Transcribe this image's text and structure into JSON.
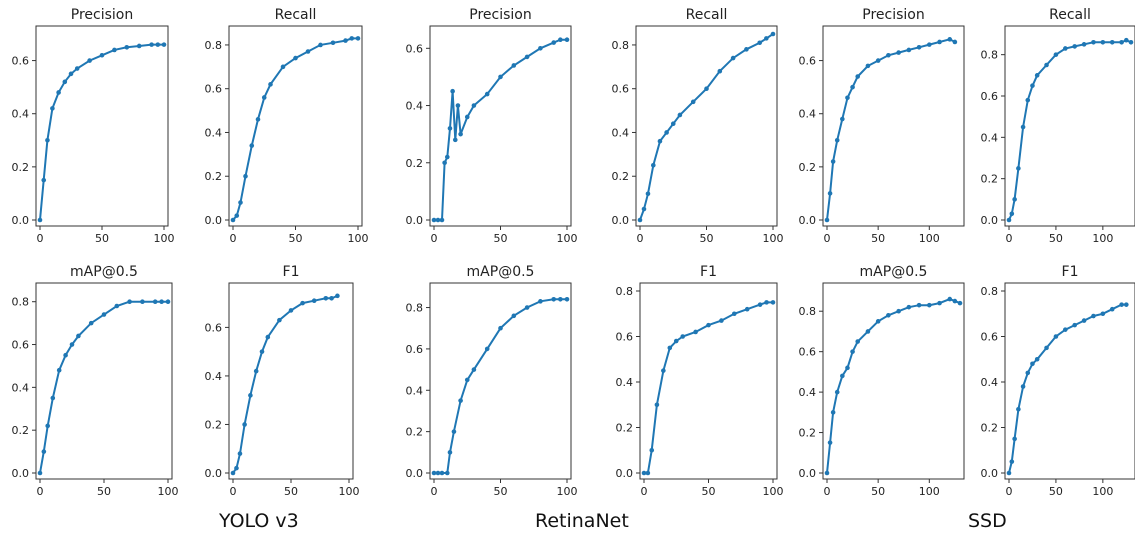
{
  "groups": [
    {
      "label": "YOLO v3"
    },
    {
      "label": "RetinaNet"
    },
    {
      "label": "SSD"
    }
  ],
  "chart_data": [
    {
      "type": "line",
      "model": "YOLO v3",
      "title": "Precision",
      "xlim": [
        0,
        100
      ],
      "ylim": [
        0,
        0.7
      ],
      "xticks": [
        0,
        50,
        100
      ],
      "yticks": [
        0.0,
        0.2,
        0.4,
        0.6
      ],
      "color": "#1f77b4",
      "x": [
        0,
        3,
        6,
        10,
        15,
        20,
        25,
        30,
        40,
        50,
        60,
        70,
        80,
        90,
        95,
        100
      ],
      "y": [
        0.0,
        0.15,
        0.3,
        0.42,
        0.48,
        0.52,
        0.55,
        0.57,
        0.6,
        0.62,
        0.64,
        0.65,
        0.655,
        0.66,
        0.66,
        0.66
      ]
    },
    {
      "type": "line",
      "model": "YOLO v3",
      "title": "Recall",
      "xlim": [
        0,
        100
      ],
      "ylim": [
        0,
        0.85
      ],
      "xticks": [
        0,
        50,
        100
      ],
      "yticks": [
        0.0,
        0.2,
        0.4,
        0.6,
        0.8
      ],
      "color": "#1f77b4",
      "x": [
        0,
        3,
        6,
        10,
        15,
        20,
        25,
        30,
        40,
        50,
        60,
        70,
        80,
        90,
        95,
        100
      ],
      "y": [
        0.0,
        0.02,
        0.08,
        0.2,
        0.34,
        0.46,
        0.56,
        0.62,
        0.7,
        0.74,
        0.77,
        0.8,
        0.81,
        0.82,
        0.83,
        0.83
      ]
    },
    {
      "type": "line",
      "model": "RetinaNet",
      "title": "Precision",
      "xlim": [
        0,
        100
      ],
      "ylim": [
        0,
        0.65
      ],
      "xticks": [
        0,
        50,
        100
      ],
      "yticks": [
        0.0,
        0.2,
        0.4,
        0.6
      ],
      "color": "#1f77b4",
      "x": [
        0,
        3,
        6,
        8,
        10,
        12,
        14,
        16,
        18,
        20,
        25,
        30,
        40,
        50,
        60,
        70,
        80,
        90,
        95,
        100
      ],
      "y": [
        0.0,
        0.0,
        0.0,
        0.2,
        0.22,
        0.32,
        0.45,
        0.28,
        0.4,
        0.3,
        0.36,
        0.4,
        0.44,
        0.5,
        0.54,
        0.57,
        0.6,
        0.62,
        0.63,
        0.63
      ]
    },
    {
      "type": "line",
      "model": "RetinaNet",
      "title": "Recall",
      "xlim": [
        0,
        100
      ],
      "ylim": [
        0,
        0.85
      ],
      "xticks": [
        0,
        50,
        100
      ],
      "yticks": [
        0.0,
        0.2,
        0.4,
        0.6,
        0.8
      ],
      "color": "#1f77b4",
      "x": [
        0,
        3,
        6,
        10,
        15,
        20,
        25,
        30,
        40,
        50,
        60,
        70,
        80,
        90,
        95,
        100
      ],
      "y": [
        0.0,
        0.05,
        0.12,
        0.25,
        0.36,
        0.4,
        0.44,
        0.48,
        0.54,
        0.6,
        0.68,
        0.74,
        0.78,
        0.81,
        0.83,
        0.85
      ]
    },
    {
      "type": "line",
      "model": "SSD",
      "title": "Precision",
      "xlim": [
        0,
        130
      ],
      "ylim": [
        0,
        0.7
      ],
      "xticks": [
        0,
        50,
        100
      ],
      "yticks": [
        0.0,
        0.2,
        0.4,
        0.6
      ],
      "color": "#1f77b4",
      "x": [
        0,
        3,
        6,
        10,
        15,
        20,
        25,
        30,
        40,
        50,
        60,
        70,
        80,
        90,
        100,
        110,
        120,
        125
      ],
      "y": [
        0.0,
        0.1,
        0.22,
        0.3,
        0.38,
        0.46,
        0.5,
        0.54,
        0.58,
        0.6,
        0.62,
        0.63,
        0.64,
        0.65,
        0.66,
        0.67,
        0.68,
        0.67
      ]
    },
    {
      "type": "line",
      "model": "SSD",
      "title": "Recall",
      "xlim": [
        0,
        130
      ],
      "ylim": [
        0,
        0.9
      ],
      "xticks": [
        0,
        50,
        100
      ],
      "yticks": [
        0.0,
        0.2,
        0.4,
        0.6,
        0.8
      ],
      "color": "#1f77b4",
      "x": [
        0,
        3,
        6,
        10,
        15,
        20,
        25,
        30,
        40,
        50,
        60,
        70,
        80,
        90,
        100,
        110,
        120,
        125,
        130
      ],
      "y": [
        0.0,
        0.03,
        0.1,
        0.25,
        0.45,
        0.58,
        0.65,
        0.7,
        0.75,
        0.8,
        0.83,
        0.84,
        0.85,
        0.86,
        0.86,
        0.86,
        0.86,
        0.87,
        0.86
      ]
    },
    {
      "type": "line",
      "model": "YOLO v3",
      "title": "mAP@0.5",
      "xlim": [
        0,
        100
      ],
      "ylim": [
        0,
        0.85
      ],
      "xticks": [
        0,
        50,
        100
      ],
      "yticks": [
        0.0,
        0.2,
        0.4,
        0.6,
        0.8
      ],
      "color": "#1f77b4",
      "x": [
        0,
        3,
        6,
        10,
        15,
        20,
        25,
        30,
        40,
        50,
        60,
        70,
        80,
        90,
        95,
        100
      ],
      "y": [
        0.0,
        0.1,
        0.22,
        0.35,
        0.48,
        0.55,
        0.6,
        0.64,
        0.7,
        0.74,
        0.78,
        0.8,
        0.8,
        0.8,
        0.8,
        0.8
      ]
    },
    {
      "type": "line",
      "model": "YOLO v3",
      "title": "F1",
      "xlim": [
        0,
        100
      ],
      "ylim": [
        0,
        0.75
      ],
      "xticks": [
        0,
        50,
        100
      ],
      "yticks": [
        0.0,
        0.2,
        0.4,
        0.6
      ],
      "color": "#1f77b4",
      "x": [
        0,
        3,
        6,
        10,
        15,
        20,
        25,
        30,
        40,
        50,
        60,
        70,
        80,
        85,
        90
      ],
      "y": [
        0.0,
        0.02,
        0.08,
        0.2,
        0.32,
        0.42,
        0.5,
        0.56,
        0.63,
        0.67,
        0.7,
        0.71,
        0.72,
        0.72,
        0.73
      ]
    },
    {
      "type": "line",
      "model": "RetinaNet",
      "title": "mAP@0.5",
      "xlim": [
        0,
        100
      ],
      "ylim": [
        0,
        0.88
      ],
      "xticks": [
        0,
        50,
        100
      ],
      "yticks": [
        0.0,
        0.2,
        0.4,
        0.6,
        0.8
      ],
      "color": "#1f77b4",
      "x": [
        0,
        3,
        6,
        10,
        12,
        15,
        20,
        25,
        30,
        40,
        50,
        60,
        70,
        80,
        90,
        95,
        100
      ],
      "y": [
        0.0,
        0.0,
        0.0,
        0.0,
        0.1,
        0.2,
        0.35,
        0.45,
        0.5,
        0.6,
        0.7,
        0.76,
        0.8,
        0.83,
        0.84,
        0.84,
        0.84
      ]
    },
    {
      "type": "line",
      "model": "RetinaNet",
      "title": "F1",
      "xlim": [
        0,
        100
      ],
      "ylim": [
        0,
        0.8
      ],
      "xticks": [
        0,
        50,
        100
      ],
      "yticks": [
        0.0,
        0.2,
        0.4,
        0.6,
        0.8
      ],
      "color": "#1f77b4",
      "x": [
        0,
        3,
        6,
        10,
        15,
        20,
        25,
        30,
        40,
        50,
        60,
        70,
        80,
        90,
        95,
        100
      ],
      "y": [
        0.0,
        0.0,
        0.1,
        0.3,
        0.45,
        0.55,
        0.58,
        0.6,
        0.62,
        0.65,
        0.67,
        0.7,
        0.72,
        0.74,
        0.75,
        0.75
      ]
    },
    {
      "type": "line",
      "model": "SSD",
      "title": "mAP@0.5",
      "xlim": [
        0,
        130
      ],
      "ylim": [
        0,
        0.9
      ],
      "xticks": [
        0,
        50,
        100
      ],
      "yticks": [
        0.0,
        0.2,
        0.4,
        0.6,
        0.8
      ],
      "color": "#1f77b4",
      "x": [
        0,
        3,
        6,
        10,
        15,
        20,
        25,
        30,
        40,
        50,
        60,
        70,
        80,
        90,
        100,
        110,
        120,
        125,
        130
      ],
      "y": [
        0.0,
        0.15,
        0.3,
        0.4,
        0.48,
        0.52,
        0.6,
        0.65,
        0.7,
        0.75,
        0.78,
        0.8,
        0.82,
        0.83,
        0.83,
        0.84,
        0.86,
        0.85,
        0.84
      ]
    },
    {
      "type": "line",
      "model": "SSD",
      "title": "F1",
      "xlim": [
        0,
        130
      ],
      "ylim": [
        0,
        0.8
      ],
      "xticks": [
        0,
        50,
        100
      ],
      "yticks": [
        0.0,
        0.2,
        0.4,
        0.6,
        0.8
      ],
      "color": "#1f77b4",
      "x": [
        0,
        3,
        6,
        10,
        15,
        20,
        25,
        30,
        40,
        50,
        60,
        70,
        80,
        90,
        100,
        110,
        120,
        125
      ],
      "y": [
        0.0,
        0.05,
        0.15,
        0.28,
        0.38,
        0.44,
        0.48,
        0.5,
        0.55,
        0.6,
        0.63,
        0.65,
        0.67,
        0.69,
        0.7,
        0.72,
        0.74,
        0.74
      ]
    }
  ]
}
